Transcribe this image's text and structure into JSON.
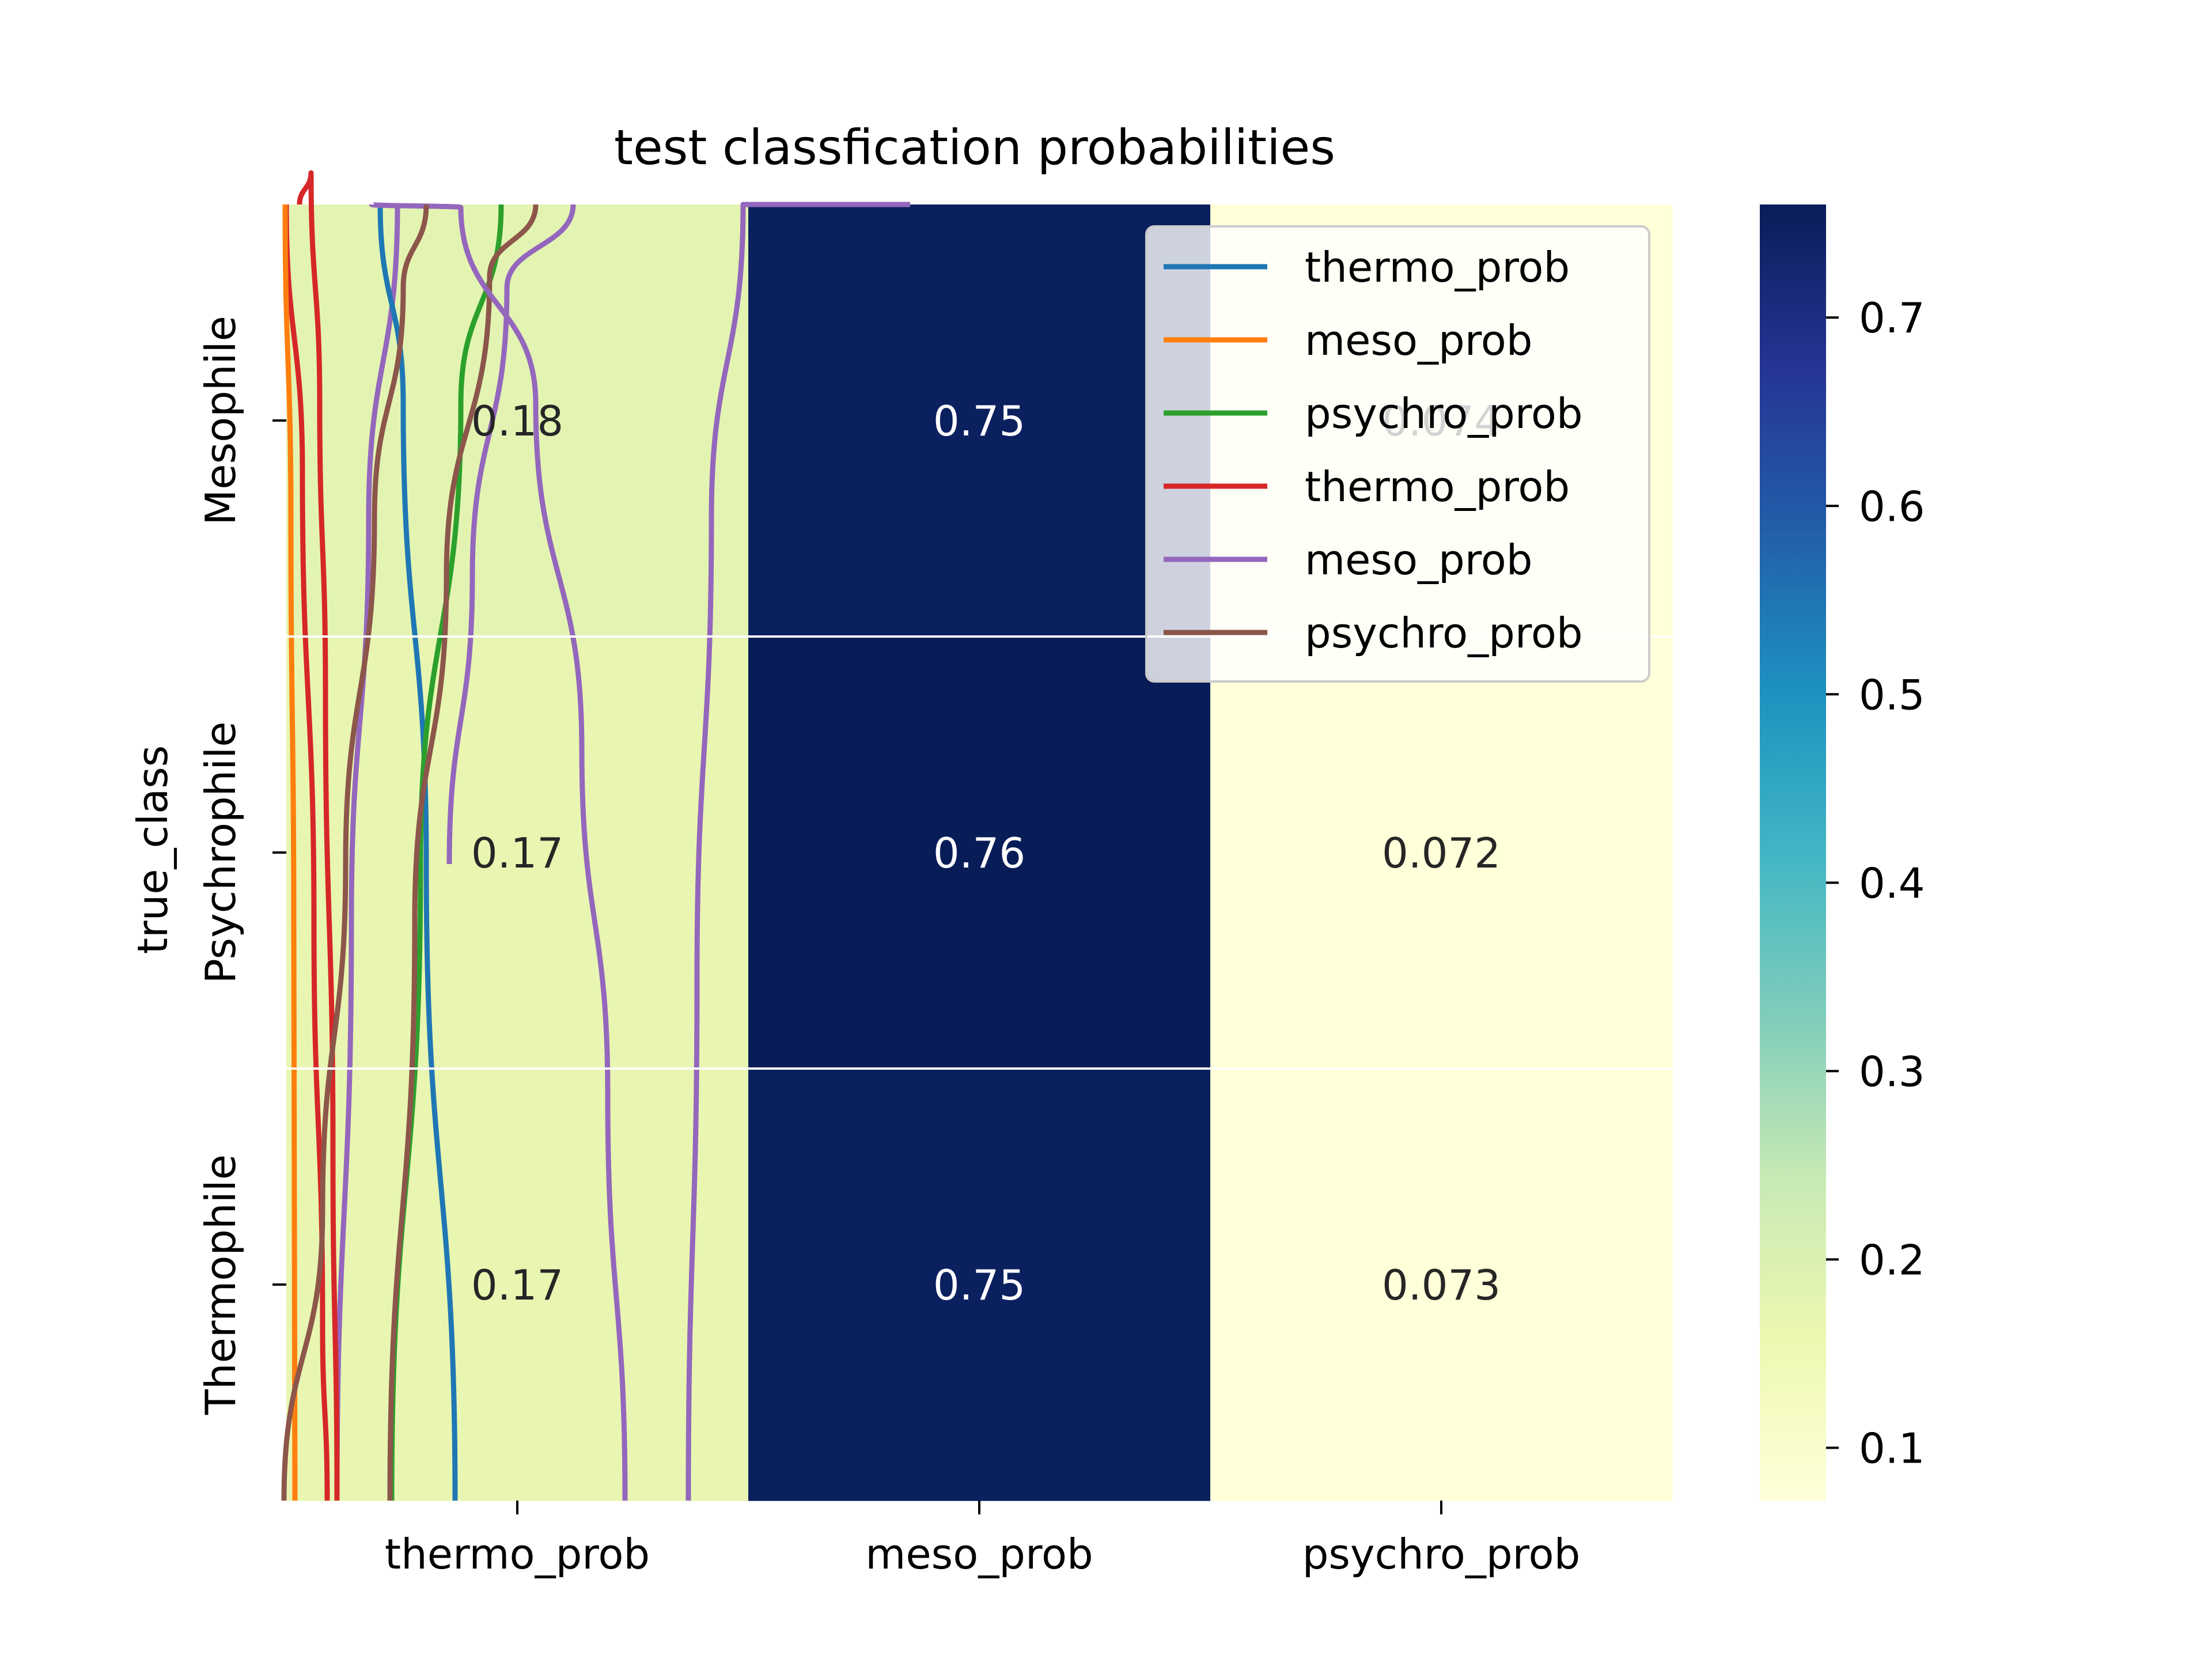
{
  "chart_data": {
    "type": "heatmap",
    "title": "test classfication probabilities",
    "xlabel": "",
    "ylabel": "true_class",
    "x_categories": [
      "thermo_prob",
      "meso_prob",
      "psychro_prob"
    ],
    "y_categories": [
      "Mesophile",
      "Psychrophile",
      "Thermophile"
    ],
    "values": [
      [
        0.18,
        0.75,
        0.074
      ],
      [
        0.17,
        0.76,
        0.072
      ],
      [
        0.17,
        0.75,
        0.073
      ]
    ],
    "cell_labels": [
      [
        "0.18",
        "0.75",
        "0.074"
      ],
      [
        "0.17",
        "0.76",
        "0.072"
      ],
      [
        "0.17",
        "0.75",
        "0.073"
      ]
    ],
    "colormap": "YlGnBu",
    "colorbar": {
      "min": 0.072,
      "max": 0.76,
      "ticks": [
        0.1,
        0.2,
        0.3,
        0.4,
        0.5,
        0.6,
        0.7
      ],
      "tick_labels": [
        "0.1",
        "0.2",
        "0.3",
        "0.4",
        "0.5",
        "0.6",
        "0.7"
      ],
      "stops": [
        "#ffffd9",
        "#edf8b1",
        "#c7e9b4",
        "#7fcdbb",
        "#41b6c4",
        "#1d91c0",
        "#225ea8",
        "#253494",
        "#081d58"
      ]
    },
    "legend": {
      "placement": "upper right",
      "entries": [
        {
          "label": "thermo_prob",
          "color": "#1f77b4"
        },
        {
          "label": "meso_prob",
          "color": "#ff7f0e"
        },
        {
          "label": "psychro_prob",
          "color": "#2ca02c"
        },
        {
          "label": "thermo_prob",
          "color": "#d62728"
        },
        {
          "label": "meso_prob",
          "color": "#9467bd"
        },
        {
          "label": "psychro_prob",
          "color": "#8c564b"
        }
      ]
    },
    "overlay_series": [
      {
        "name": "thermo_prob",
        "color": "#1f77b4"
      },
      {
        "name": "meso_prob",
        "color": "#ff7f0e"
      },
      {
        "name": "psychro_prob",
        "color": "#2ca02c"
      },
      {
        "name": "thermo_prob",
        "color": "#d62728"
      },
      {
        "name": "meso_prob",
        "color": "#9467bd"
      },
      {
        "name": "psychro_prob",
        "color": "#8c564b"
      }
    ]
  }
}
